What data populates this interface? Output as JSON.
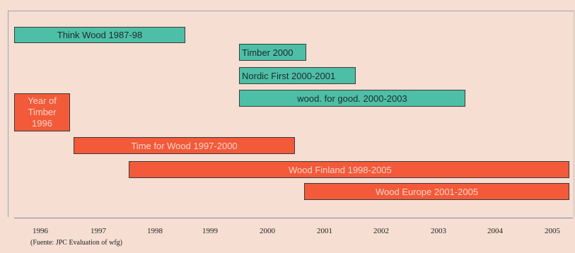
{
  "bars": [
    {
      "id": "think-wood",
      "label": "Think Wood 1987-98",
      "color": "teal"
    },
    {
      "id": "timber-2000",
      "label": "Timber 2000",
      "color": "teal"
    },
    {
      "id": "nordic-first",
      "label": "Nordic First 2000-2001",
      "color": "teal"
    },
    {
      "id": "wood-for-good",
      "label": "wood. for good. 2000-2003",
      "color": "teal"
    },
    {
      "id": "year-of-timber",
      "label": "Year of Timber 1996",
      "color": "red"
    },
    {
      "id": "time-for-wood",
      "label": "Time for Wood 1997-2000",
      "color": "red"
    },
    {
      "id": "wood-finland",
      "label": "Wood Finland 1998-2005",
      "color": "red"
    },
    {
      "id": "wood-europe",
      "label": "Wood Europe 2001-2005",
      "color": "red"
    }
  ],
  "axis": {
    "years": [
      "1996",
      "1997",
      "1998",
      "1999",
      "2000",
      "2001",
      "2002",
      "2003",
      "2004",
      "2005"
    ]
  },
  "source": "(Fuente: JPC Evaluation of wfg)",
  "colors": {
    "teal": "#4dbfa6",
    "red": "#f25a3a",
    "background": "#f6ded3"
  }
}
